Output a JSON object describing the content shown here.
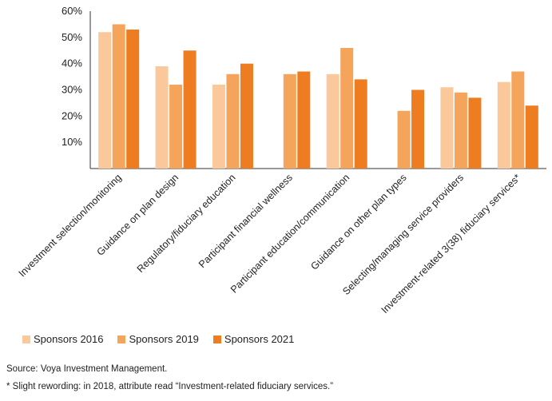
{
  "chart_data": {
    "type": "bar",
    "categories": [
      "Investment selection/monitoring",
      "Guidance on plan design",
      "Regulatory/fiduciary education",
      "Participant financial wellness",
      "Participant education/communication",
      "Guidance on other plan types",
      "Selecting/managing service providers",
      "Investment-related 3(38) fiduciary services*"
    ],
    "series": [
      {
        "name": "Sponsors 2016",
        "color": "#fbc89b",
        "values": [
          52,
          39,
          32,
          null,
          36,
          null,
          31,
          33
        ]
      },
      {
        "name": "Sponsors 2019",
        "color": "#f5a45c",
        "values": [
          55,
          32,
          36,
          36,
          46,
          22,
          29,
          37
        ]
      },
      {
        "name": "Sponsors 2021",
        "color": "#ee7d22",
        "values": [
          53,
          45,
          40,
          37,
          34,
          30,
          27,
          24
        ]
      }
    ],
    "ylim": [
      0,
      60
    ],
    "yticks": [
      "10%",
      "20%",
      "30%",
      "40%",
      "50%",
      "60%"
    ],
    "ytick_values": [
      10,
      20,
      30,
      40,
      50,
      60
    ],
    "grid": false,
    "legend_position": "bottom-left"
  },
  "notes": {
    "source": "Source: Voya Investment Management.",
    "footnote": "* Slight rewording: in 2018, attribute read “Investment-related fiduciary services.”"
  }
}
